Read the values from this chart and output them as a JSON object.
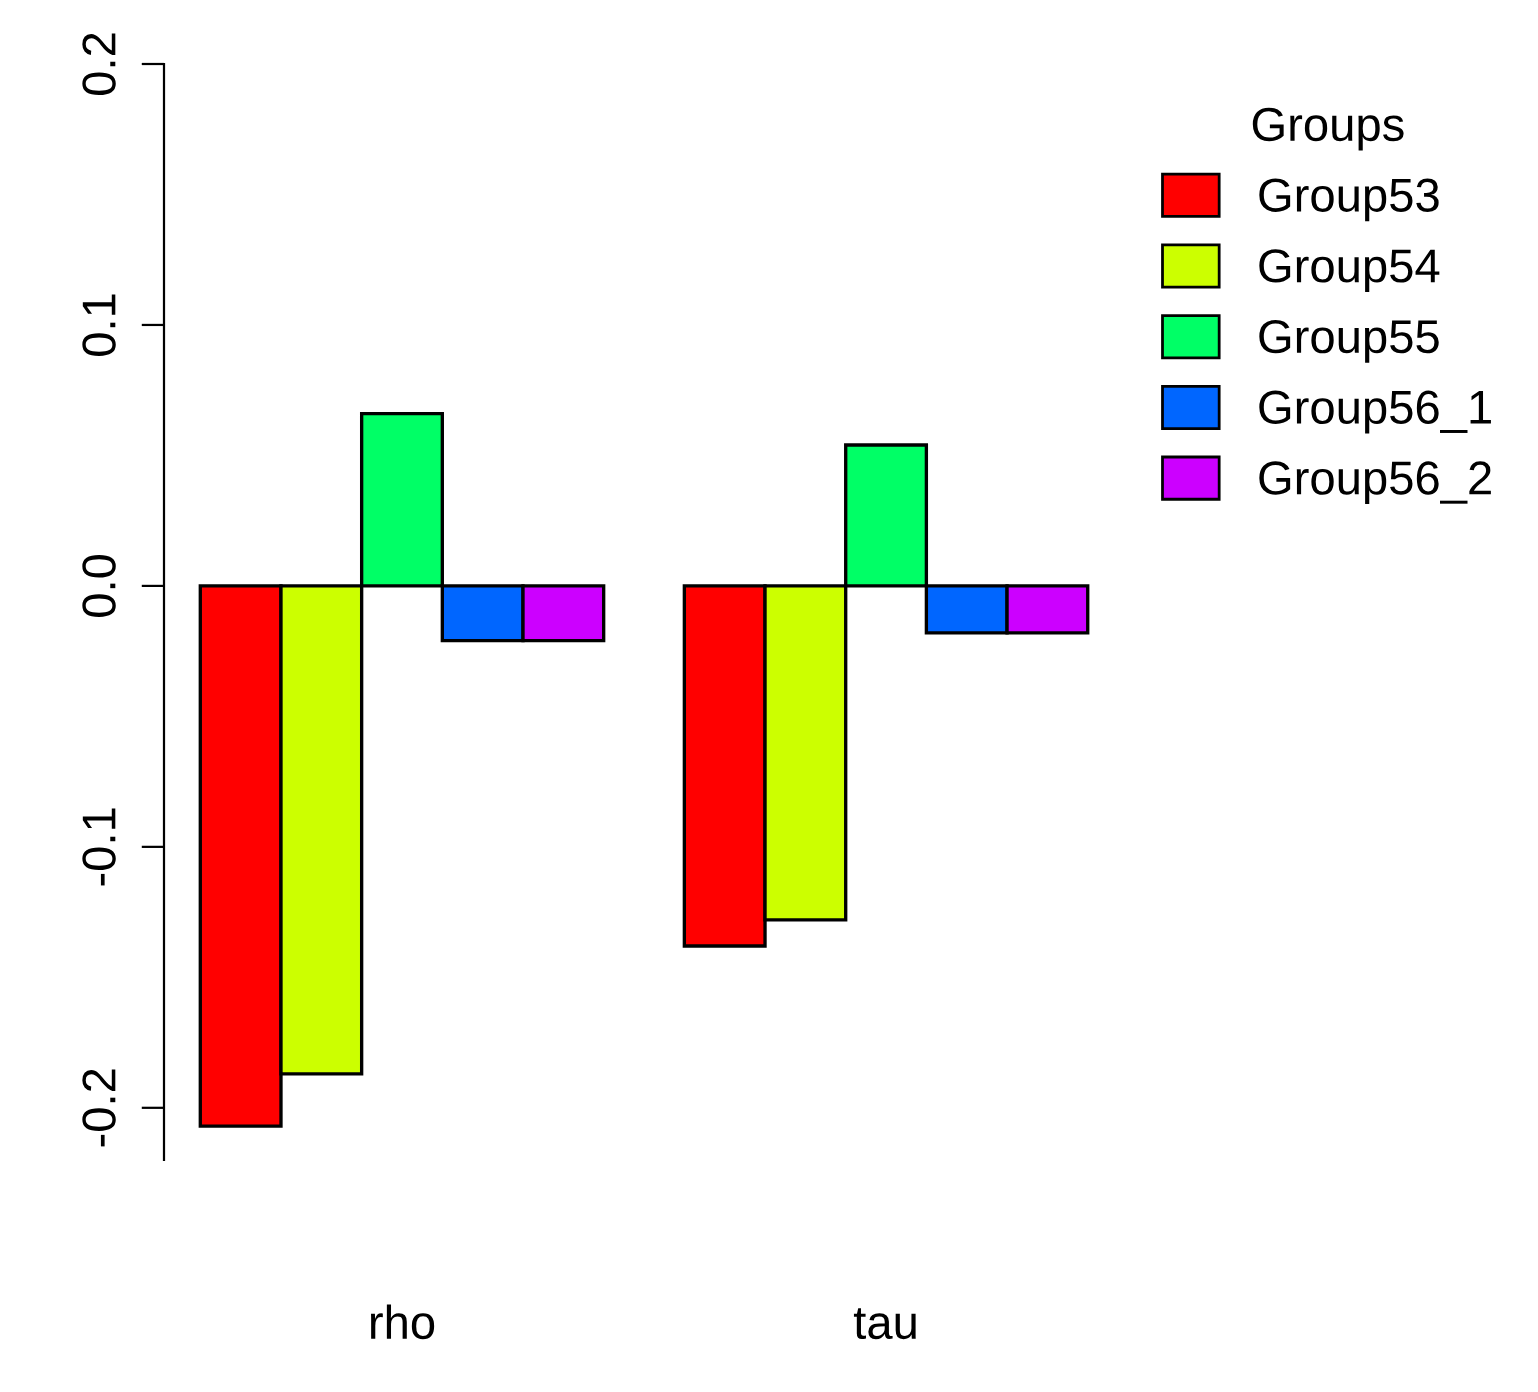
{
  "chart_data": {
    "type": "bar",
    "categories": [
      "rho",
      "tau"
    ],
    "series": [
      {
        "name": "Group53",
        "color": "#ff0000",
        "values": [
          -0.207,
          -0.138
        ]
      },
      {
        "name": "Group54",
        "color": "#ccff00",
        "values": [
          -0.187,
          -0.128
        ]
      },
      {
        "name": "Group55",
        "color": "#00ff66",
        "values": [
          0.066,
          0.054
        ]
      },
      {
        "name": "Group56_1",
        "color": "#0066ff",
        "values": [
          -0.021,
          -0.018
        ]
      },
      {
        "name": "Group56_2",
        "color": "#cc00ff",
        "values": [
          -0.021,
          -0.018
        ]
      }
    ],
    "legend_title": "Groups",
    "legend": "right",
    "ylim": [
      -0.22,
      0.2
    ],
    "yticks": [
      {
        "value": -0.2,
        "label": "-0.2"
      },
      {
        "value": -0.1,
        "label": "-0.1"
      },
      {
        "value": 0.0,
        "label": "0.0"
      },
      {
        "value": 0.1,
        "label": "0.1"
      },
      {
        "value": 0.2,
        "label": "0.2"
      }
    ]
  }
}
